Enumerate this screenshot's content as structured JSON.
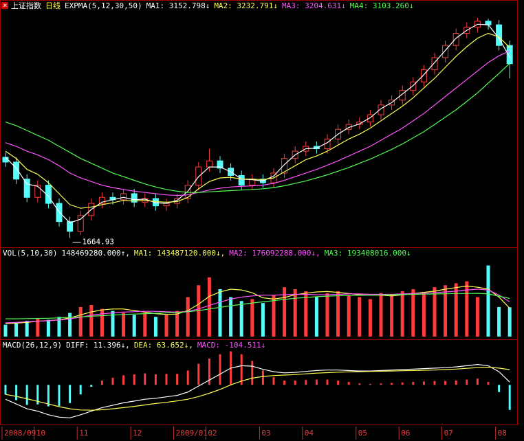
{
  "header": {
    "title": "上证指数",
    "period": "日线"
  },
  "chart_data": [
    {
      "type": "candlestick",
      "indicator": "EXPMA(5,12,30,50)",
      "categories": [
        "2008/09",
        null,
        null,
        "10",
        null,
        null,
        null,
        "11",
        null,
        null,
        null,
        null,
        "12",
        null,
        null,
        null,
        "2009/01",
        null,
        null,
        "02",
        null,
        null,
        null,
        null,
        "03",
        null,
        null,
        null,
        "04",
        null,
        null,
        null,
        null,
        "05",
        null,
        null,
        null,
        "06",
        null,
        null,
        null,
        "07",
        null,
        null,
        null,
        null,
        "08",
        null
      ],
      "open": [
        2330,
        2290,
        2150,
        2000,
        2100,
        1950,
        1800,
        1720,
        1850,
        1950,
        2000,
        1980,
        2030,
        1960,
        1990,
        1930,
        1950,
        1990,
        2100,
        2250,
        2300,
        2240,
        2180,
        2100,
        2150,
        2120,
        2200,
        2320,
        2380,
        2420,
        2400,
        2480,
        2560,
        2600,
        2620,
        2680,
        2760,
        2800,
        2880,
        2950,
        3050,
        3150,
        3250,
        3350,
        3400,
        3450,
        3420,
        3250
      ],
      "high": [
        2370,
        2330,
        2190,
        2140,
        2140,
        1990,
        1840,
        1890,
        1990,
        2040,
        2040,
        2070,
        2070,
        2030,
        2030,
        1990,
        2030,
        2140,
        2290,
        2400,
        2340,
        2280,
        2220,
        2190,
        2190,
        2240,
        2360,
        2420,
        2460,
        2460,
        2520,
        2600,
        2640,
        2660,
        2720,
        2800,
        2840,
        2920,
        2990,
        3090,
        3190,
        3290,
        3390,
        3440,
        3478,
        3470,
        3460,
        3290
      ],
      "low": [
        2250,
        2110,
        1960,
        1960,
        1910,
        1760,
        1664.93,
        1690,
        1810,
        1910,
        1940,
        1940,
        1920,
        1920,
        1890,
        1890,
        1910,
        1950,
        2060,
        2210,
        2200,
        2140,
        2060,
        2060,
        2080,
        2080,
        2160,
        2280,
        2340,
        2360,
        2360,
        2440,
        2520,
        2560,
        2580,
        2640,
        2720,
        2760,
        2840,
        2910,
        3010,
        3110,
        3210,
        3310,
        3360,
        3380,
        3210,
        2980
      ],
      "close": [
        2290,
        2150,
        2000,
        2100,
        1950,
        1800,
        1720,
        1850,
        1950,
        2000,
        1980,
        2030,
        1960,
        1990,
        1930,
        1950,
        1990,
        2100,
        2250,
        2300,
        2240,
        2180,
        2100,
        2150,
        2120,
        2200,
        2320,
        2380,
        2420,
        2400,
        2480,
        2560,
        2600,
        2620,
        2680,
        2760,
        2800,
        2880,
        2950,
        3050,
        3150,
        3250,
        3350,
        3400,
        3450,
        3420,
        3250,
        3100
      ],
      "up_color": "#ff3c3c",
      "down_color": "#54fcfc",
      "ylim": [
        1600,
        3500
      ],
      "series": [
        {
          "name": "MA1: 3152.798↓",
          "color": "#ffffff",
          "kind": "line",
          "values": [
            2330,
            2240,
            2110,
            2090,
            2010,
            1880,
            1790,
            1820,
            1900,
            1960,
            1980,
            2000,
            1980,
            1985,
            1955,
            1950,
            1975,
            2050,
            2170,
            2250,
            2250,
            2210,
            2150,
            2145,
            2135,
            2175,
            2270,
            2350,
            2400,
            2405,
            2450,
            2520,
            2575,
            2605,
            2655,
            2730,
            2780,
            2850,
            2920,
            3010,
            3110,
            3210,
            3310,
            3375,
            3425,
            3420,
            3310,
            3153
          ]
        },
        {
          "name": "MA2: 3232.791↓",
          "color": "#ffff54",
          "kind": "line",
          "values": [
            2380,
            2320,
            2230,
            2190,
            2120,
            2030,
            1940,
            1910,
            1920,
            1940,
            1955,
            1975,
            1970,
            1975,
            1965,
            1960,
            1965,
            2000,
            2070,
            2130,
            2160,
            2165,
            2150,
            2150,
            2145,
            2160,
            2210,
            2260,
            2310,
            2340,
            2380,
            2430,
            2480,
            2520,
            2570,
            2630,
            2690,
            2750,
            2820,
            2900,
            2980,
            3070,
            3160,
            3240,
            3310,
            3350,
            3320,
            3233
          ]
        },
        {
          "name": "MA3: 3204.631↓",
          "color": "#ff54ff",
          "kind": "line",
          "values": [
            2450,
            2420,
            2380,
            2350,
            2310,
            2260,
            2200,
            2160,
            2130,
            2100,
            2080,
            2065,
            2050,
            2040,
            2030,
            2020,
            2015,
            2020,
            2040,
            2060,
            2075,
            2085,
            2090,
            2095,
            2100,
            2115,
            2140,
            2170,
            2200,
            2230,
            2265,
            2300,
            2340,
            2380,
            2420,
            2470,
            2520,
            2570,
            2630,
            2690,
            2760,
            2830,
            2900,
            2970,
            3040,
            3110,
            3165,
            3205
          ]
        },
        {
          "name": "MA4: 3103.260↓",
          "color": "#54fc54",
          "kind": "line",
          "values": [
            2620,
            2590,
            2550,
            2510,
            2470,
            2420,
            2370,
            2320,
            2280,
            2240,
            2200,
            2170,
            2140,
            2110,
            2085,
            2065,
            2050,
            2040,
            2040,
            2045,
            2050,
            2055,
            2060,
            2065,
            2070,
            2080,
            2095,
            2115,
            2135,
            2160,
            2185,
            2215,
            2245,
            2280,
            2315,
            2355,
            2395,
            2440,
            2490,
            2540,
            2600,
            2660,
            2720,
            2790,
            2860,
            2940,
            3020,
            3103
          ]
        }
      ]
    },
    {
      "type": "bar",
      "indicator": "VOL(5,10,30)",
      "up_color": "#ff3c3c",
      "down_color": "#54fcfc",
      "ylim": [
        0,
        400000000
      ],
      "series": [
        {
          "name": "148469280.000↑,",
          "color": "#ffffff",
          "kind": "bar",
          "values": [
            60000000.0,
            70000000.0,
            80000000.0,
            90000000.0,
            85000000.0,
            100000000.0,
            120000000.0,
            150000000.0,
            160000000.0,
            140000000.0,
            130000000.0,
            120000000.0,
            110000000.0,
            120000000.0,
            100000000.0,
            110000000.0,
            130000000.0,
            200000000.0,
            260000000.0,
            300000000.0,
            240000000.0,
            200000000.0,
            180000000.0,
            190000000.0,
            170000000.0,
            210000000.0,
            250000000.0,
            240000000.0,
            230000000.0,
            200000000.0,
            220000000.0,
            230000000.0,
            210000000.0,
            200000000.0,
            190000000.0,
            220000000.0,
            210000000.0,
            230000000.0,
            240000000.0,
            220000000.0,
            250000000.0,
            260000000.0,
            270000000.0,
            280000000.0,
            200000000.0,
            360000000.0,
            150000000.0,
            148469280
          ]
        },
        {
          "name": "MA1: 143487120.000↓,",
          "color": "#ffff54",
          "kind": "line",
          "values": [
            65000000.0,
            68000000.0,
            72000000.0,
            78000000.0,
            81000000.0,
            85000000.0,
            95000000.0,
            110000000.0,
            125000000.0,
            135000000.0,
            140000000.0,
            140000000.0,
            132000000.0,
            124000000.0,
            116000000.0,
            112000000.0,
            114000000.0,
            132000000.0,
            164000000.0,
            204000000.0,
            226000000.0,
            240000000.0,
            236000000.0,
            222000000.0,
            196000000.0,
            190000000.0,
            198000000.0,
            212000000.0,
            220000000.0,
            226000000.0,
            228000000.0,
            224000000.0,
            218000000.0,
            212000000.0,
            210000000.0,
            210000000.0,
            206000000.0,
            212000000.0,
            218000000.0,
            224000000.0,
            230000000.0,
            240000000.0,
            248000000.0,
            256000000.0,
            250000000.0,
            240000000.0,
            200000000.0,
            143487120
          ]
        },
        {
          "name": "MA2: 176092288.000↓,",
          "color": "#ff54ff",
          "kind": "line",
          "values": [
            70000000.0,
            72000000.0,
            75000000.0,
            78000000.0,
            80000000.0,
            84000000.0,
            90000000.0,
            98000000.0,
            108000000.0,
            115000000.0,
            120000000.0,
            124000000.0,
            126000000.0,
            128000000.0,
            128000000.0,
            126000000.0,
            124000000.0,
            128000000.0,
            140000000.0,
            158000000.0,
            175000000.0,
            190000000.0,
            200000000.0,
            206000000.0,
            210000000.0,
            210000000.0,
            212000000.0,
            214000000.0,
            214000000.0,
            212000000.0,
            212000000.0,
            214000000.0,
            216000000.0,
            216000000.0,
            214000000.0,
            214000000.0,
            214000000.0,
            216000000.0,
            218000000.0,
            220000000.0,
            222000000.0,
            226000000.0,
            230000000.0,
            236000000.0,
            240000000.0,
            236000000.0,
            210000000.0,
            176092288
          ]
        },
        {
          "name": "MA3: 193408016.000↓",
          "color": "#54fc54",
          "kind": "line",
          "values": [
            90000000.0,
            90000000.0,
            91000000.0,
            92000000.0,
            93000000.0,
            95000000.0,
            97000000.0,
            100000000.0,
            103000000.0,
            106000000.0,
            109000000.0,
            112000000.0,
            114000000.0,
            116000000.0,
            118000000.0,
            120000000.0,
            122000000.0,
            126000000.0,
            132000000.0,
            140000000.0,
            148000000.0,
            156000000.0,
            163000000.0,
            170000000.0,
            176000000.0,
            182000000.0,
            188000000.0,
            194000000.0,
            198000000.0,
            202000000.0,
            205000000.0,
            207000000.0,
            208000000.0,
            209000000.0,
            210000000.0,
            211000000.0,
            212000000.0,
            213000000.0,
            214000000.0,
            215000000.0,
            216000000.0,
            217000000.0,
            218000000.0,
            218000000.0,
            219000000.0,
            216000000.0,
            205000000.0,
            193408016
          ]
        }
      ]
    },
    {
      "type": "line",
      "indicator": "MACD(26,12,9)",
      "up_color": "#ff3c3c",
      "down_color": "#54fcfc",
      "ylim": [
        -160,
        150
      ],
      "series": [
        {
          "name": "DIFF: 11.396↓,",
          "color": "#ffffff",
          "kind": "line",
          "values": [
            -60,
            -80,
            -100,
            -110,
            -125,
            -135,
            -138,
            -125,
            -110,
            -95,
            -85,
            -75,
            -68,
            -60,
            -56,
            -50,
            -44,
            -30,
            -5,
            20,
            45,
            70,
            80,
            78,
            65,
            55,
            50,
            52,
            56,
            60,
            62,
            62,
            60,
            58,
            58,
            60,
            62,
            64,
            66,
            68,
            70,
            72,
            75,
            80,
            85,
            80,
            55,
            11.396
          ]
        },
        {
          "name": "DEA: 63.652↓,",
          "color": "#ffff54",
          "kind": "line",
          "values": [
            -40,
            -48,
            -58,
            -69,
            -80,
            -91,
            -100,
            -105,
            -106,
            -104,
            -100,
            -95,
            -90,
            -84,
            -78,
            -73,
            -67,
            -60,
            -49,
            -35,
            -19,
            0,
            16,
            28,
            35,
            39,
            41,
            43,
            46,
            49,
            51,
            53,
            54,
            55,
            56,
            57,
            58,
            59,
            60,
            61,
            62,
            64,
            66,
            69,
            72,
            74,
            70,
            63.652
          ]
        },
        {
          "name": "MACD: -104.511↓",
          "color": "#ff54ff",
          "kind": "bar",
          "values": [
            -40,
            -64,
            -84,
            -82,
            -90,
            -88,
            -76,
            -40,
            -8,
            18,
            30,
            40,
            44,
            48,
            44,
            46,
            46,
            60,
            88,
            110,
            128,
            140,
            128,
            100,
            60,
            32,
            18,
            18,
            20,
            22,
            22,
            18,
            12,
            6,
            4,
            6,
            8,
            10,
            12,
            14,
            16,
            16,
            18,
            22,
            26,
            12,
            -30,
            -104.511
          ]
        }
      ]
    }
  ]
}
